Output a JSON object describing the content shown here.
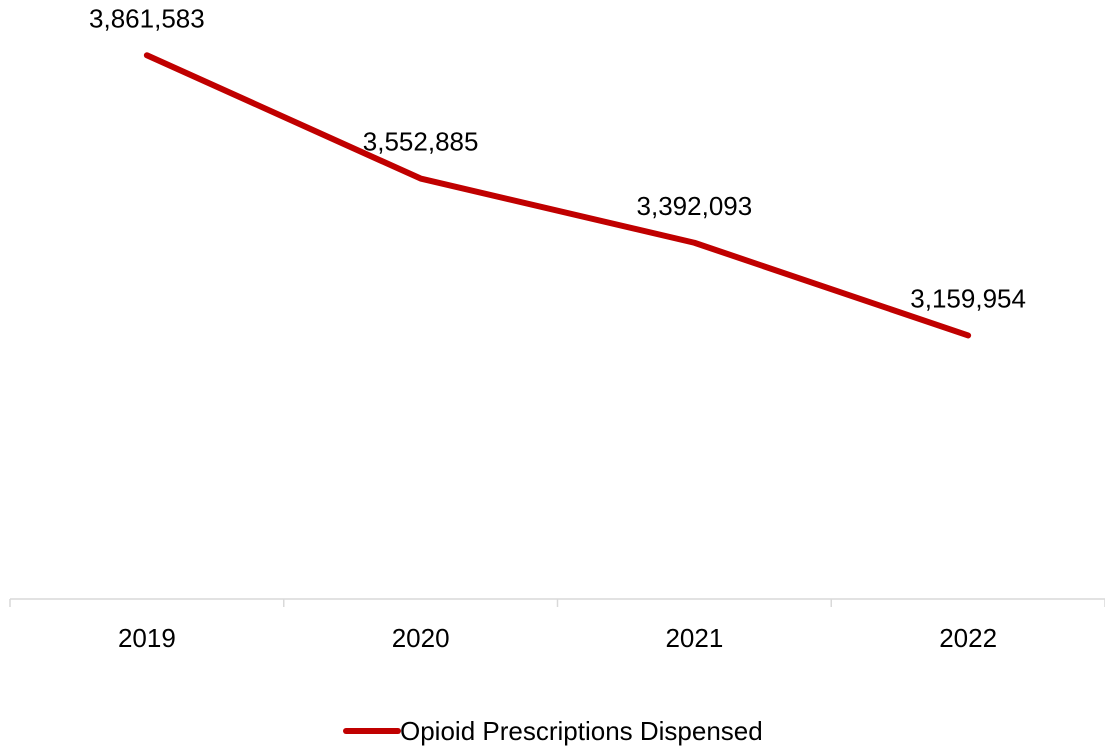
{
  "chart_data": {
    "type": "line",
    "title": "",
    "xlabel": "",
    "ylabel": "",
    "categories": [
      "2019",
      "2020",
      "2021",
      "2022"
    ],
    "series": [
      {
        "name": "Opioid Prescriptions Dispensed",
        "color": "#C00000",
        "values": [
          3861583,
          3552885,
          3392093,
          3159954
        ],
        "labels": [
          "3,861,583",
          "3,552,885",
          "3,392,093",
          "3,159,954"
        ]
      }
    ],
    "ylim": [
      2500000,
      4000000
    ],
    "grid": false,
    "legend": "bottom"
  }
}
